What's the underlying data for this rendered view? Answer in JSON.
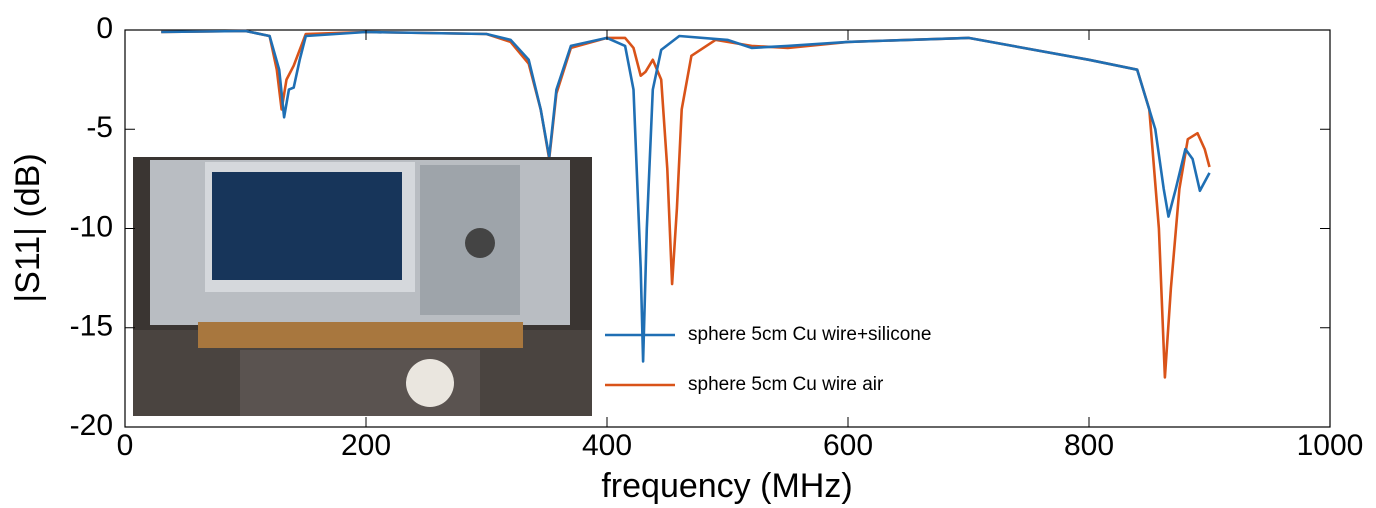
{
  "chart_data": {
    "type": "line",
    "x_label": "frequency (MHz)",
    "y_label": "|S11| (dB)",
    "xlim": [
      0,
      1000
    ],
    "ylim": [
      -20,
      0
    ],
    "xticks": [
      0,
      200,
      400,
      600,
      800,
      1000
    ],
    "yticks": [
      -20,
      -15,
      -10,
      -5,
      0
    ],
    "grid": false,
    "legend": "lower center",
    "series": [
      {
        "name": "sphere 5cm Cu wire+silicone",
        "color": "#1f6fb4",
        "x": [
          30,
          100,
          120,
          128,
          132,
          136,
          140,
          145,
          150,
          200,
          300,
          320,
          335,
          345,
          352,
          358,
          370,
          400,
          415,
          422,
          428,
          430,
          433,
          438,
          445,
          460,
          500,
          520,
          550,
          600,
          700,
          800,
          840,
          855,
          862,
          866,
          872,
          880,
          886,
          892,
          900
        ],
        "values": [
          -0.1,
          -0.05,
          -0.3,
          -2,
          -4.4,
          -3,
          -2.9,
          -1.5,
          -0.3,
          -0.1,
          -0.2,
          -0.5,
          -1.5,
          -4,
          -6.4,
          -3,
          -0.8,
          -0.4,
          -0.8,
          -3,
          -12,
          -16.7,
          -10,
          -3,
          -1,
          -0.3,
          -0.5,
          -0.9,
          -0.8,
          -0.6,
          -0.4,
          -1.5,
          -2,
          -5,
          -8,
          -9.4,
          -8,
          -6,
          -6.5,
          -8.1,
          -7.2
        ]
      },
      {
        "name": "sphere 5cm Cu wire air",
        "color": "#d95319",
        "x": [
          30,
          100,
          120,
          126,
          130,
          134,
          140,
          145,
          150,
          200,
          300,
          320,
          335,
          345,
          352,
          358,
          370,
          400,
          415,
          422,
          428,
          432,
          438,
          445,
          450,
          454,
          458,
          462,
          470,
          490,
          520,
          550,
          600,
          700,
          800,
          840,
          850,
          858,
          863,
          868,
          875,
          882,
          890,
          896,
          900
        ],
        "values": [
          -0.1,
          -0.05,
          -0.3,
          -2,
          -4,
          -2.5,
          -1.8,
          -1,
          -0.2,
          -0.1,
          -0.2,
          -0.6,
          -1.7,
          -4,
          -6.5,
          -3.2,
          -0.9,
          -0.4,
          -0.4,
          -0.9,
          -2.3,
          -2.1,
          -1.5,
          -2.5,
          -7,
          -12.8,
          -9,
          -4,
          -1.3,
          -0.5,
          -0.8,
          -0.9,
          -0.6,
          -0.4,
          -1.5,
          -2,
          -4,
          -10,
          -17.5,
          -13,
          -8,
          -5.5,
          -5.2,
          -6,
          -6.9
        ]
      }
    ]
  }
}
